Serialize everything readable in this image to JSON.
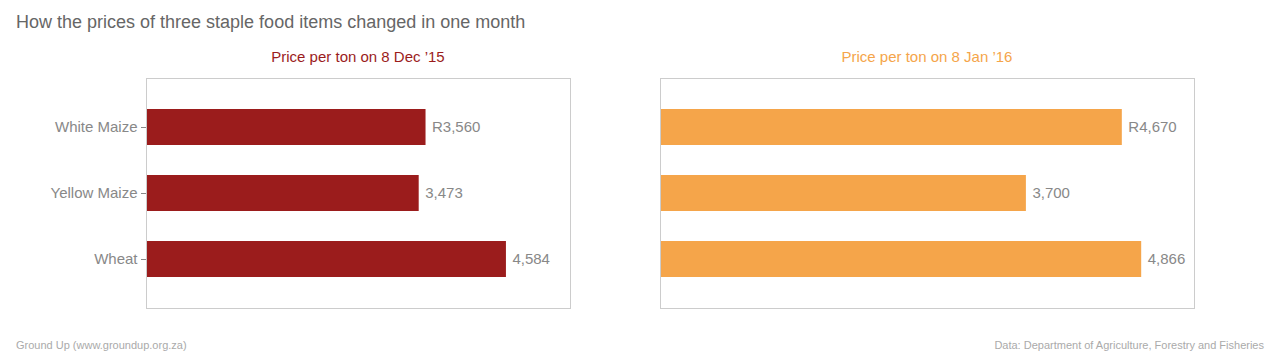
{
  "chart_data": [
    {
      "type": "bar",
      "title": "How the prices of three staple food items changed in one month",
      "subtitle": "Price per ton on 8 Dec ’15",
      "orientation": "horizontal",
      "categories": [
        "White Maize",
        "Yellow Maize",
        "Wheat"
      ],
      "values": [
        3560,
        3473,
        4584
      ],
      "value_labels": [
        "R3,560",
        "3,473",
        "4,584"
      ],
      "data_labels": true,
      "color": "#9b1c1c",
      "xlim": [
        0,
        5400
      ],
      "xticks": [],
      "tick_labels": "y",
      "grid": false,
      "annotations": [
        "Ground Up (www.groundup.org.za)",
        "Data: Department of Agriculture, Forestry and Fisheries"
      ]
    },
    {
      "type": "bar",
      "subtitle": "Price per ton on 8 Jan ’16",
      "orientation": "horizontal",
      "categories": [
        "White Maize",
        "Yellow Maize",
        "Wheat"
      ],
      "values": [
        4670,
        3700,
        4866
      ],
      "value_labels": [
        "R4,670",
        "3,700",
        "4,866"
      ],
      "data_labels": true,
      "color": "#f5a54a",
      "xlim": [
        0,
        5400
      ],
      "xticks": [],
      "tick_labels": false,
      "grid": false
    }
  ]
}
